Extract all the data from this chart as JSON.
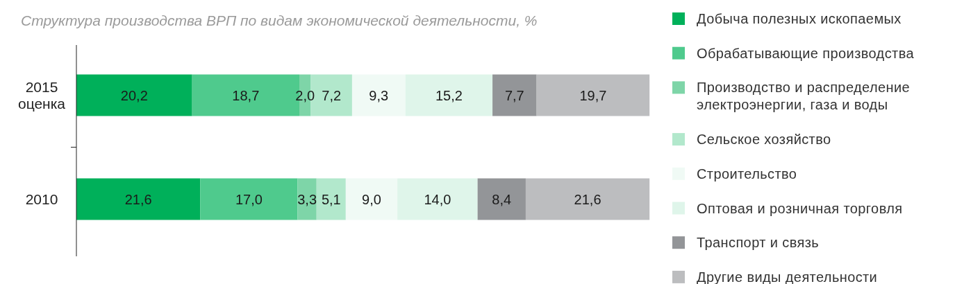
{
  "chart_data": {
    "type": "bar",
    "orientation": "horizontal",
    "stacked": true,
    "title": "Структура производства ВРП по видам экономической деятельности, %",
    "categories": [
      "2015\nоценка",
      "2010"
    ],
    "series": [
      {
        "name": "Добыча полезных ископаемых",
        "color": "#00b05a",
        "values": [
          20.2,
          21.6
        ],
        "value_labels": [
          "20,2",
          "21,6"
        ]
      },
      {
        "name": "Обрабатывающие производства",
        "color": "#4fca8d",
        "values": [
          18.7,
          17.0
        ],
        "value_labels": [
          "18,7",
          "17,0"
        ]
      },
      {
        "name": "Производство и распределение\nэлектроэнергии, газа и воды",
        "color": "#7ed5a8",
        "values": [
          2.0,
          3.3
        ],
        "value_labels": [
          "2,0",
          "3,3"
        ]
      },
      {
        "name": "Сельское хозяйство",
        "color": "#b2e8cc",
        "values": [
          7.2,
          5.1
        ],
        "value_labels": [
          "7,2",
          "5,1"
        ]
      },
      {
        "name": "Строительство",
        "color": "#f0faf5",
        "values": [
          9.3,
          9.0
        ],
        "value_labels": [
          "9,3",
          "9,0"
        ]
      },
      {
        "name": "Оптовая и розничная торговля",
        "color": "#dff5ea",
        "values": [
          15.2,
          14.0
        ],
        "value_labels": [
          "15,2",
          "14,0"
        ]
      },
      {
        "name": "Транспорт и связь",
        "color": "#939598",
        "values": [
          7.7,
          8.4
        ],
        "value_labels": [
          "7,7",
          "8,4"
        ]
      },
      {
        "name": "Другие виды деятельности",
        "color": "#bcbdbf",
        "values": [
          19.7,
          21.6
        ],
        "value_labels": [
          "19,7",
          "21,6"
        ]
      }
    ],
    "xlim": [
      0,
      100.1
    ],
    "legend": "right",
    "tick_labels": "y"
  }
}
